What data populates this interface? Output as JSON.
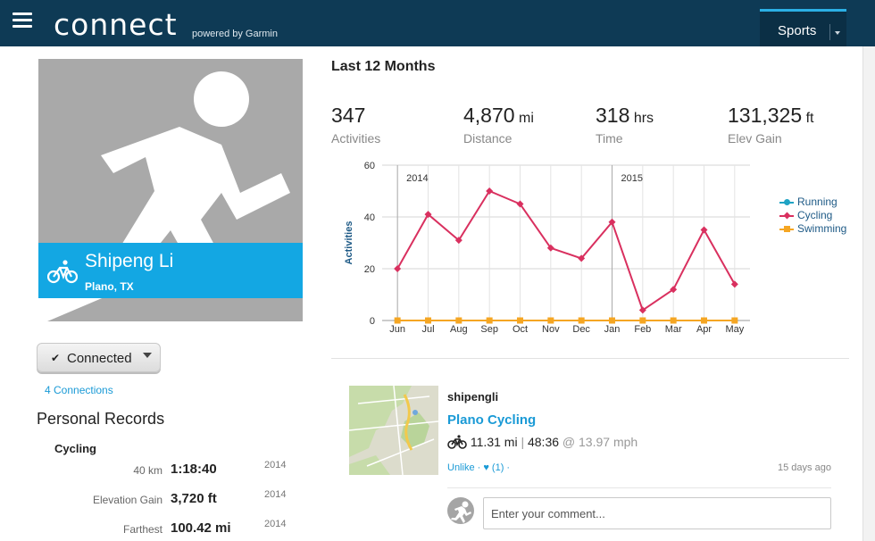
{
  "header": {
    "brand": "connect",
    "tagline": "powered by Garmin",
    "sports_tab": "Sports",
    "colors": {
      "bar": "#0e3a55",
      "accent": "#2bb0e5"
    }
  },
  "profile": {
    "name": "Shipeng Li",
    "location": "Plano, TX",
    "connected_label": "Connected",
    "connections_link": "4 Connections",
    "colors": {
      "band": "#13a7e3",
      "card": "#a9a9a9"
    }
  },
  "records": {
    "title": "Personal Records",
    "category": "Cycling",
    "items": [
      {
        "label": "40 km",
        "value": "1:18:40",
        "year": "2014"
      },
      {
        "label": "Elevation Gain",
        "value": "3,720 ft",
        "year": "2014"
      },
      {
        "label": "Farthest",
        "value": "100.42 mi",
        "year": "2014"
      }
    ]
  },
  "summary": {
    "title": "Last 12 Months",
    "stats": [
      {
        "value": "347",
        "unit": "",
        "label": "Activities"
      },
      {
        "value": "4,870",
        "unit": "mi",
        "label": "Distance"
      },
      {
        "value": "318",
        "unit": "hrs",
        "label": "Time"
      },
      {
        "value": "131,325",
        "unit": "ft",
        "label": "Elev Gain"
      }
    ]
  },
  "chart_data": {
    "type": "line",
    "ylabel": "Activities",
    "xlabel": "",
    "ylim": [
      0,
      60
    ],
    "yticks": [
      0,
      20,
      40,
      60
    ],
    "grid": true,
    "legend_position": "right",
    "categories": [
      "Jun",
      "Jul",
      "Aug",
      "Sep",
      "Oct",
      "Nov",
      "Dec",
      "Jan",
      "Feb",
      "Mar",
      "Apr",
      "May"
    ],
    "year_markers": [
      {
        "label": "2014",
        "category_index": 0
      },
      {
        "label": "2015",
        "category_index": 7
      }
    ],
    "series": [
      {
        "name": "Running",
        "color": "#1fa3c4",
        "marker": "circle",
        "values": [
          0,
          0,
          0,
          0,
          0,
          0,
          0,
          0,
          0,
          0,
          0,
          0
        ]
      },
      {
        "name": "Cycling",
        "color": "#d9305f",
        "marker": "diamond",
        "values": [
          20,
          41,
          31,
          50,
          45,
          28,
          24,
          38,
          4,
          12,
          35,
          14
        ]
      },
      {
        "name": "Swimming",
        "color": "#f5a623",
        "marker": "square",
        "values": [
          0,
          0,
          0,
          0,
          0,
          0,
          0,
          0,
          0,
          0,
          0,
          0
        ]
      }
    ]
  },
  "activity": {
    "user": "shipengli",
    "title": "Plano Cycling",
    "distance": "11.31 mi",
    "separator": "|",
    "duration": "48:36",
    "speed": "@ 13.97 mph",
    "likes": "Unlike · ♥ (1) ·",
    "time_ago": "15 days ago",
    "comment_placeholder": "Enter your comment..."
  }
}
